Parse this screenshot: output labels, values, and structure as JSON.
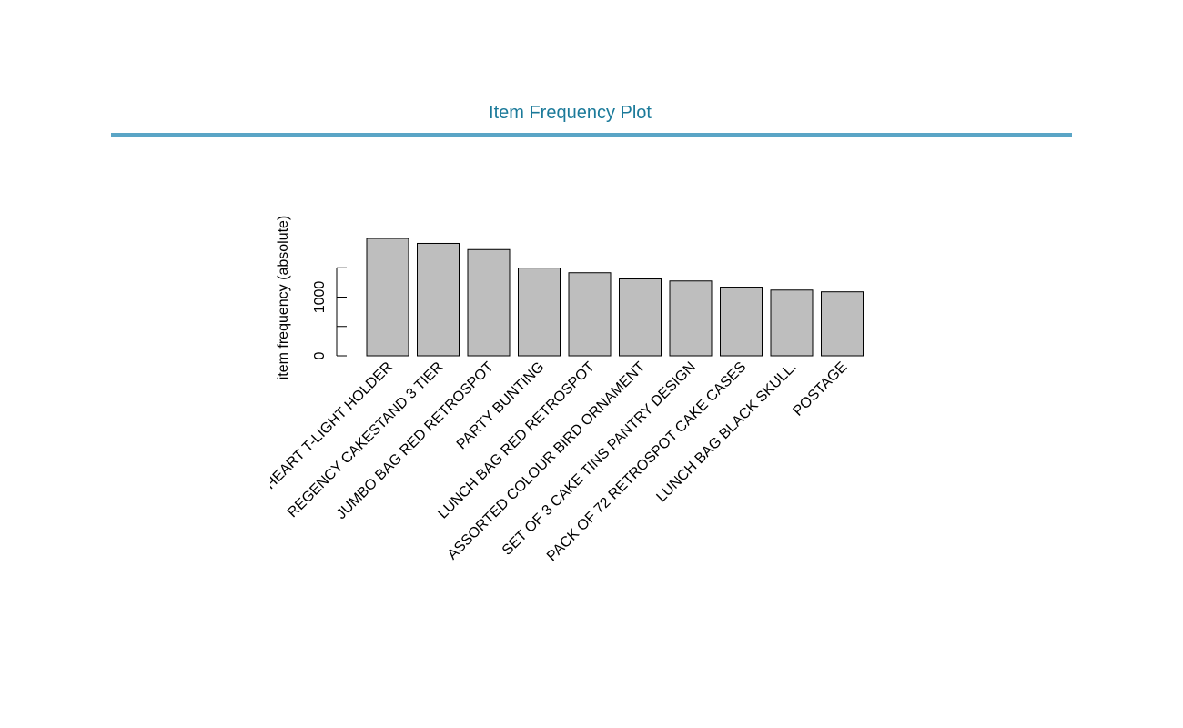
{
  "header": {
    "title": "Item Frequency Plot",
    "accent_color": "#5aa5c6",
    "title_color": "#1b7a9a"
  },
  "chart_data": {
    "type": "bar",
    "title": "",
    "xlabel": "",
    "ylabel": "item frequency (absolute)",
    "categories": [
      "WHITE HANGING HEART T-LIGHT HOLDER",
      "REGENCY CAKESTAND 3 TIER",
      "JUMBO BAG RED RETROSPOT",
      "PARTY BUNTING",
      "LUNCH BAG RED RETROSPOT",
      "ASSORTED COLOUR BIRD ORNAMENT",
      "SET OF 3 CAKE TINS PANTRY DESIGN",
      "PACK OF 72 RETROSPOT CAKE CASES",
      "LUNCH BAG  BLACK SKULL.",
      "POSTAGE"
    ],
    "values": [
      2000,
      1915,
      1810,
      1495,
      1415,
      1310,
      1275,
      1170,
      1120,
      1090
    ],
    "yticks": [
      0,
      500,
      1000,
      1500
    ],
    "ytick_labels": [
      "0",
      "",
      "1000",
      ""
    ],
    "ylim": [
      0,
      2000
    ],
    "bar_color": "#bebebe",
    "grid": false,
    "legend": "none"
  }
}
